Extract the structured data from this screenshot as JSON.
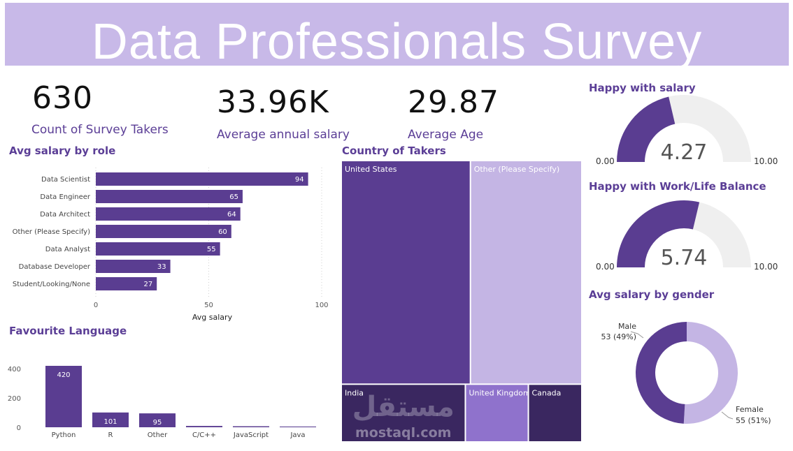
{
  "title": "Data Professionals Survey",
  "kpis": [
    {
      "value": "630",
      "label": "Count of Survey Takers"
    },
    {
      "value": "33.96K",
      "label": "Average annual salary"
    },
    {
      "value": "29.87",
      "label": "Average Age"
    }
  ],
  "watermark": {
    "logo_text": "مستقل",
    "site": "mostaql.com"
  },
  "colors": {
    "primary": "#5a3d91",
    "light": "#c4b5e4",
    "medium": "#8f72cc",
    "dark": "#3a2760",
    "gauge_track": "#efefef",
    "banner": "#c8b9e8"
  },
  "chart_data": [
    {
      "type": "bar",
      "orientation": "horizontal",
      "title": "Avg salary by role",
      "xlabel": "Avg salary",
      "categories": [
        "Data Scientist",
        "Data Engineer",
        "Data Architect",
        "Other (Please Specify)",
        "Data Analyst",
        "Database Developer",
        "Student/Looking/None"
      ],
      "values": [
        94,
        65,
        64,
        60,
        55,
        33,
        27
      ],
      "xlim": [
        0,
        100
      ],
      "xticks": [
        0,
        50,
        100
      ],
      "grid": true
    },
    {
      "type": "bar",
      "title": "Favourite Language",
      "categories": [
        "Python",
        "R",
        "Other",
        "C/C++",
        "JavaScript",
        "Java"
      ],
      "values": [
        420,
        101,
        95,
        9,
        7,
        5
      ],
      "labels": [
        "420",
        "101",
        "95",
        "",
        "",
        ""
      ],
      "ylim": [
        0,
        450
      ],
      "yticks": [
        0,
        200,
        400
      ]
    },
    {
      "type": "treemap",
      "title": "Country of Takers",
      "categories": [
        "United States",
        "Other (Please Specify)",
        "India",
        "United Kingdom",
        "Canada"
      ],
      "values": [
        262,
        226,
        65,
        33,
        28
      ]
    },
    {
      "type": "gauge",
      "title": "Happy with salary",
      "value": 4.27,
      "value_label": "4.27",
      "min": 0,
      "max": 10,
      "min_label": "0.00",
      "max_label": "10.00"
    },
    {
      "type": "gauge",
      "title": "Happy with Work/Life Balance",
      "value": 5.74,
      "value_label": "5.74",
      "min": 0,
      "max": 10,
      "min_label": "0.00",
      "max_label": "10.00"
    },
    {
      "type": "pie",
      "donut": true,
      "title": "Avg salary by gender",
      "categories": [
        "Male",
        "Female"
      ],
      "values": [
        53,
        55
      ],
      "labels": [
        "53 (49%)",
        "55 (51%)"
      ]
    }
  ]
}
